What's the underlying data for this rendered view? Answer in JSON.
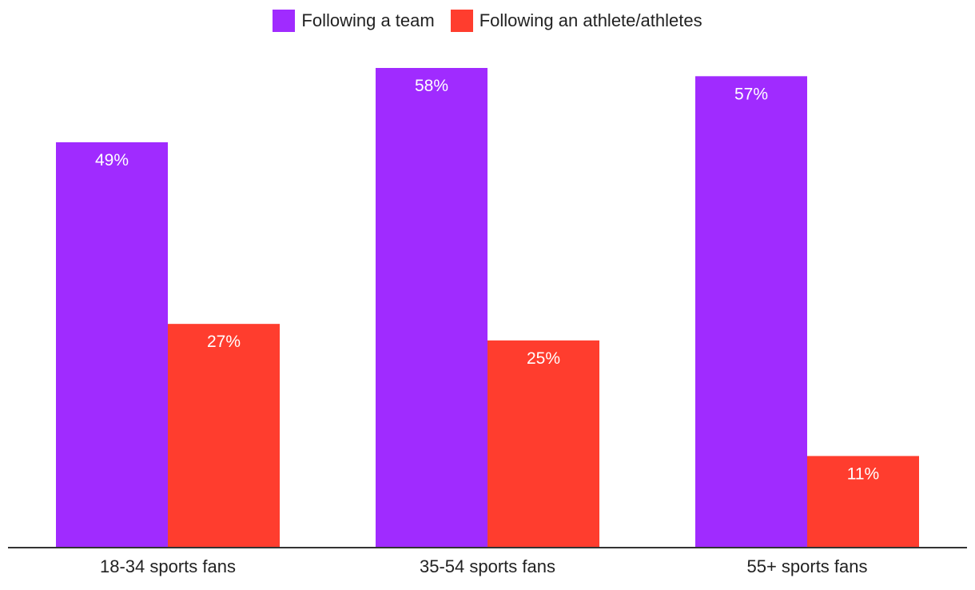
{
  "chart_data": {
    "type": "bar",
    "title": "",
    "xlabel": "",
    "ylabel": "",
    "ylim": [
      0,
      60
    ],
    "grid": false,
    "legend_position": "top-center",
    "categories": [
      "18-34 sports fans",
      "35-54 sports fans",
      "55+ sports fans"
    ],
    "series": [
      {
        "name": "Following a team",
        "color": "#a02bff",
        "values": [
          49,
          58,
          57
        ],
        "labels": [
          "49%",
          "58%",
          "57%"
        ]
      },
      {
        "name": "Following an athlete/athletes",
        "color": "#ff3d2e",
        "values": [
          27,
          25,
          11
        ],
        "labels": [
          "27%",
          "25%",
          "11%"
        ]
      }
    ]
  },
  "axis_color": "#333333"
}
